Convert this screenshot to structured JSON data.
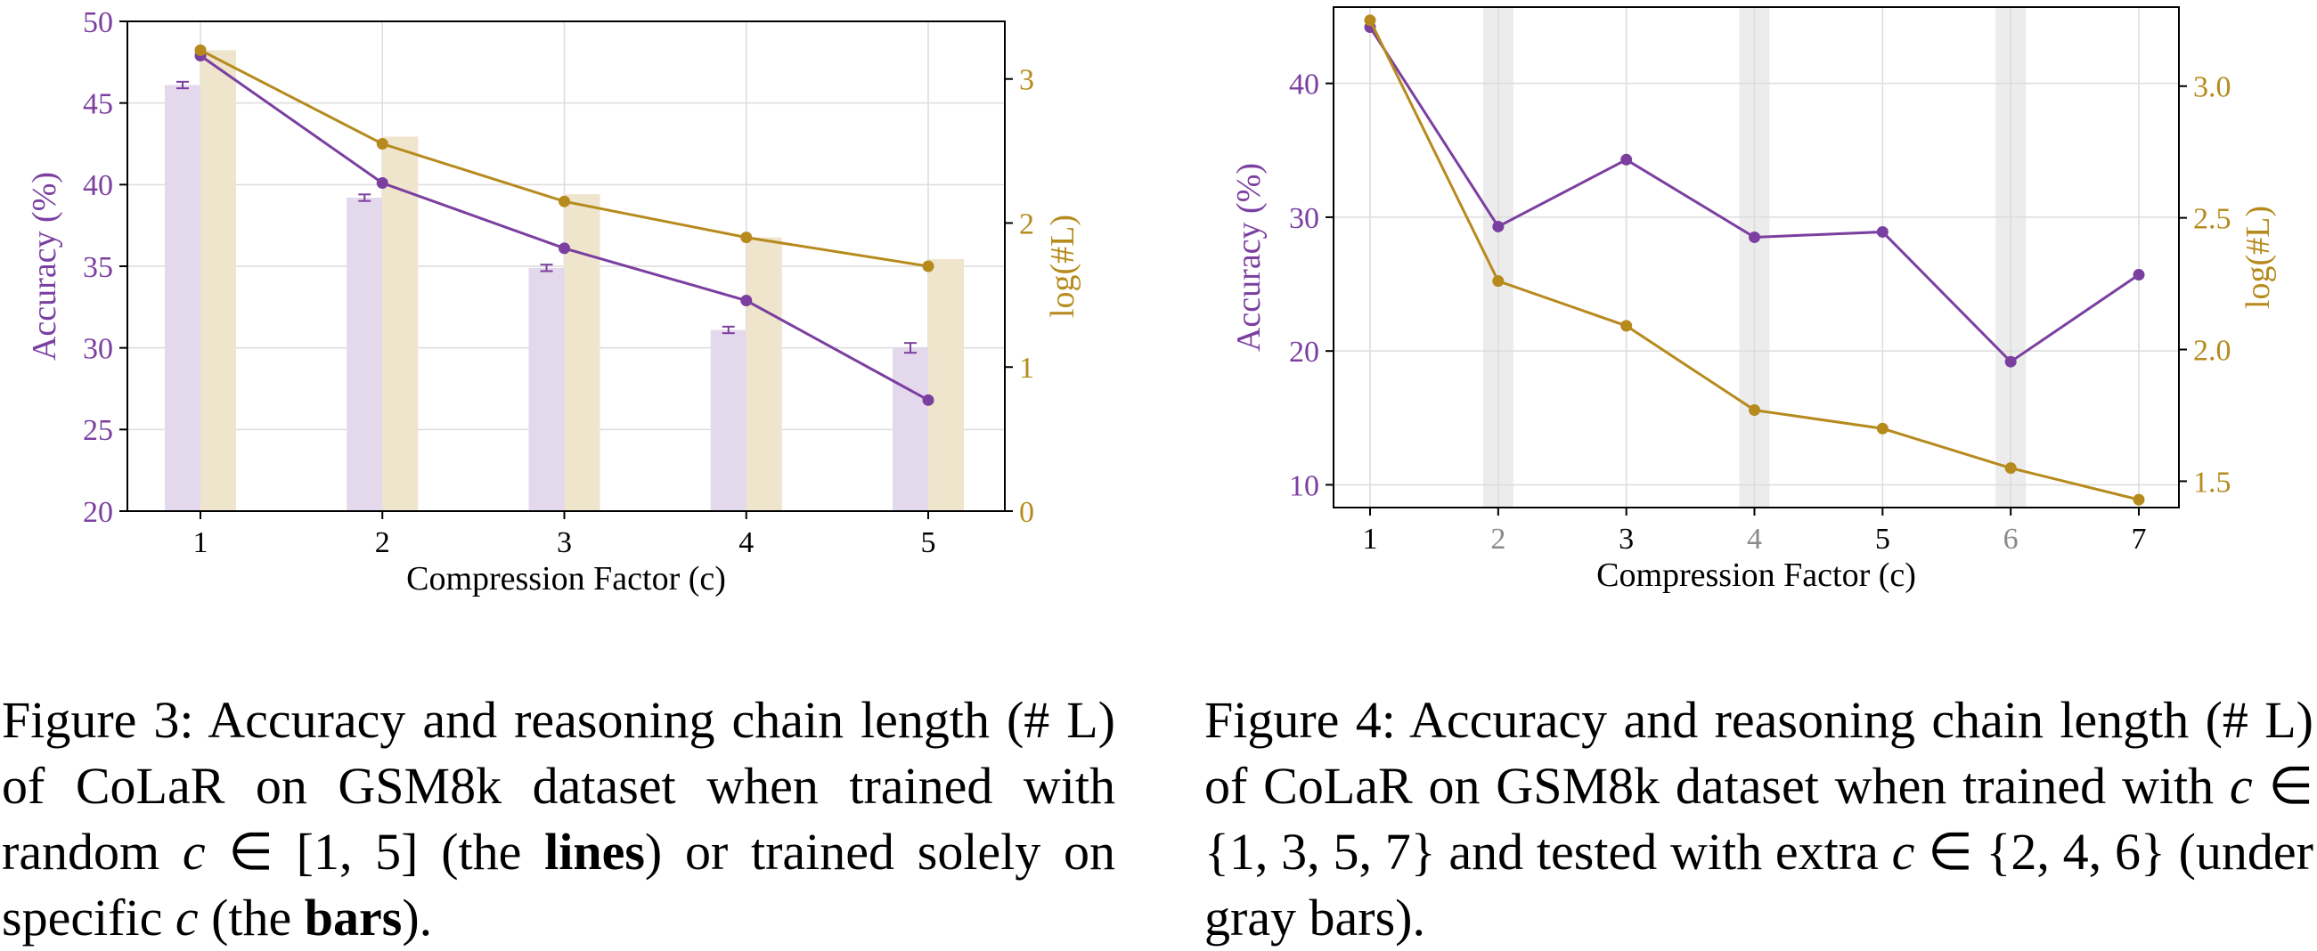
{
  "chart_data": [
    {
      "id": "fig3",
      "type": "bar+line",
      "xlabel": "Compression Factor (c)",
      "ylabel_left": "Accuracy (%)",
      "ylabel_right": "log(#L)",
      "x": [
        1,
        2,
        3,
        4,
        5
      ],
      "ylim_left": [
        20,
        50
      ],
      "yticks_left": [
        20,
        25,
        30,
        35,
        40,
        45,
        50
      ],
      "ylim_right": [
        0,
        3.4
      ],
      "yticks_right": [
        0,
        1,
        2,
        3
      ],
      "grid": true,
      "series": [
        {
          "kind": "bar",
          "axis": "left",
          "values": [
            46.1,
            39.2,
            34.9,
            31.1,
            30.0
          ],
          "err": [
            0.2,
            0.2,
            0.2,
            0.2,
            0.3
          ]
        },
        {
          "kind": "bar",
          "axis": "right",
          "values": [
            3.2,
            2.6,
            2.2,
            1.9,
            1.75
          ]
        },
        {
          "kind": "line",
          "axis": "left",
          "values": [
            47.9,
            40.1,
            36.1,
            32.9,
            26.8
          ]
        },
        {
          "kind": "line",
          "axis": "right",
          "values": [
            3.2,
            2.55,
            2.15,
            1.9,
            1.7
          ]
        }
      ],
      "colors": {
        "accuracy": "#7b3fa0",
        "length": "#b68a1d",
        "accuracy_bar": "#e3d8ec",
        "length_bar": "#efe4cc"
      }
    },
    {
      "id": "fig4",
      "type": "line",
      "xlabel": "Compression Factor (c)",
      "ylabel_left": "Accuracy (%)",
      "ylabel_right": "log(#L)",
      "x": [
        1,
        2,
        3,
        4,
        5,
        6,
        7
      ],
      "ylim_left": [
        8.3,
        45.7
      ],
      "yticks_left": [
        10,
        20,
        30,
        40
      ],
      "ylim_right": [
        1.4,
        3.3
      ],
      "yticks_right": [
        1.5,
        2.0,
        2.5,
        3.0
      ],
      "grid": true,
      "gray_x": [
        2,
        4,
        6
      ],
      "series": [
        {
          "kind": "line",
          "axis": "left",
          "values": [
            44.2,
            29.3,
            34.3,
            28.5,
            28.9,
            19.2,
            25.7
          ]
        },
        {
          "kind": "line",
          "axis": "right",
          "values": [
            3.25,
            2.26,
            2.09,
            1.77,
            1.7,
            1.55,
            1.43
          ]
        }
      ],
      "colors": {
        "accuracy": "#7b3fa0",
        "length": "#b68a1d",
        "gray_band": "#ececec"
      }
    }
  ],
  "captions": {
    "fig3": {
      "t1": "Figure 3: Accuracy and reasoning chain length (# L) of CoLaR on GSM8k dataset when trained with random ",
      "m1": "c",
      "t2": " ∈ [1, 5] (the ",
      "b1": "lines",
      "t3": ") or trained solely on specific ",
      "m2": "c",
      "t4": " (the ",
      "b2": "bars",
      "t5": ")."
    },
    "fig4": {
      "t1": "Figure 4: Accuracy and reasoning chain length (# L) of CoLaR on GSM8k dataset when trained with ",
      "m1": "c",
      "t2": " ∈ {1, 3, 5, 7} and tested with extra ",
      "m2": "c",
      "t3": " ∈ {2, 4, 6} (under gray bars)."
    }
  }
}
